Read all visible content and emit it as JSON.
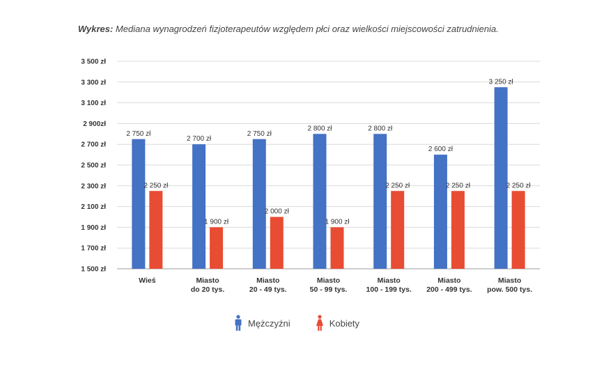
{
  "caption": {
    "lead": "Wykres:",
    "text": "Mediana wynagrodzeń fizjoterapeutów względem płci oraz wielkości miejscowości zatrudnienia."
  },
  "chart_data": {
    "type": "bar",
    "title": "",
    "xlabel": "",
    "ylabel": "",
    "ylim": [
      1500,
      3500
    ],
    "grid": true,
    "legend_placement": "bottom",
    "y_ticks": [
      1500,
      1700,
      1900,
      2100,
      2300,
      2500,
      2700,
      2900,
      3100,
      3300,
      3500
    ],
    "y_tick_labels": [
      "1 500 zł",
      "1 700 zł",
      "1 900 zł",
      "2 100 zł",
      "2 300 zł",
      "2 500 zł",
      "2 700 zł",
      "2 900zł",
      "3 100 zł",
      "3 300 zł",
      "3 500 zł"
    ],
    "categories": [
      [
        "Wieś"
      ],
      [
        "Miasto",
        "do 20 tys."
      ],
      [
        "Miasto",
        "20 - 49 tys."
      ],
      [
        "Miasto",
        "50 - 99 tys."
      ],
      [
        "Miasto",
        "100 - 199 tys."
      ],
      [
        "Miasto",
        "200 - 499 tys."
      ],
      [
        "Miasto",
        "pow. 500 tys."
      ]
    ],
    "series": [
      {
        "name": "Mężczyźni",
        "color": "#4472c4",
        "values": [
          2750,
          2700,
          2750,
          2800,
          2800,
          2600,
          3250
        ],
        "labels": [
          "2 750 zł",
          "2 700 zł",
          "2 750 zł",
          "2 800 zł",
          "2 800 zł",
          "2 600 zł",
          "3 250 zł"
        ]
      },
      {
        "name": "Kobiety",
        "color": "#e84c33",
        "values": [
          2250,
          1900,
          2000,
          1900,
          2250,
          2250,
          2250
        ],
        "labels": [
          "2 250 zł",
          "1 900 zł",
          "2 000 zł",
          "1 900 zł",
          "2 250 zł",
          "2 250 zł",
          "2 250 zł"
        ]
      }
    ]
  },
  "legend": {
    "items": [
      {
        "label": "Mężczyźni",
        "icon": "male-person-icon",
        "color": "#4472c4"
      },
      {
        "label": "Kobiety",
        "icon": "female-person-icon",
        "color": "#e84c33"
      }
    ]
  }
}
